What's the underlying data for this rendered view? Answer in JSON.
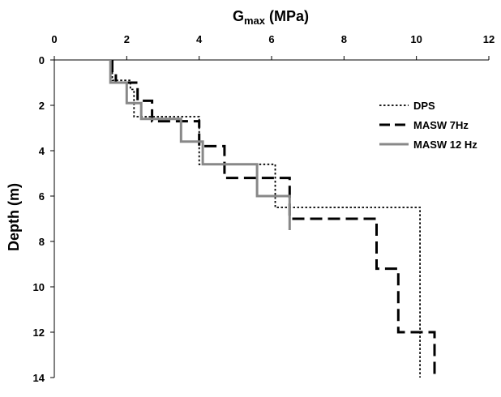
{
  "chart_data": {
    "type": "line",
    "title_main": "G",
    "title_sub": "max",
    "title_unit": " (MPa)",
    "xlabel": "",
    "ylabel": "Depth (m)",
    "x_axis_position": "top",
    "y_inverted": true,
    "xlim": [
      0,
      12
    ],
    "ylim": [
      0,
      15
    ],
    "xticks": [
      "0",
      "2",
      "4",
      "6",
      "8",
      "10",
      "12"
    ],
    "yticks": [
      "0",
      "2",
      "4",
      "6",
      "8",
      "10",
      "12",
      "14"
    ],
    "grid": false,
    "legend_position": "top-right",
    "series": [
      {
        "name": "DPS",
        "color": "#000000",
        "style": "dotted",
        "points": [
          [
            1.6,
            0
          ],
          [
            1.6,
            0.9
          ],
          [
            2.1,
            0.9
          ],
          [
            2.1,
            1.3
          ],
          [
            2.2,
            1.3
          ],
          [
            2.2,
            2.5
          ],
          [
            4.0,
            2.5
          ],
          [
            4.0,
            4.6
          ],
          [
            6.1,
            4.6
          ],
          [
            6.1,
            6.5
          ],
          [
            10.1,
            6.5
          ],
          [
            10.1,
            15
          ]
        ]
      },
      {
        "name": "MASW 7Hz",
        "color": "#000000",
        "style": "dashed",
        "points": [
          [
            1.6,
            0
          ],
          [
            1.6,
            0.6
          ],
          [
            1.7,
            0.6
          ],
          [
            1.7,
            1.0
          ],
          [
            2.3,
            1.0
          ],
          [
            2.3,
            1.8
          ],
          [
            2.7,
            1.8
          ],
          [
            2.7,
            2.7
          ],
          [
            4.0,
            2.7
          ],
          [
            4.0,
            3.8
          ],
          [
            4.7,
            3.8
          ],
          [
            4.7,
            5.2
          ],
          [
            6.5,
            5.2
          ],
          [
            6.5,
            7.0
          ],
          [
            8.9,
            7.0
          ],
          [
            8.9,
            9.2
          ],
          [
            9.5,
            9.2
          ],
          [
            9.5,
            12.0
          ],
          [
            10.5,
            12.0
          ],
          [
            10.5,
            15
          ]
        ]
      },
      {
        "name": "MASW 12 Hz",
        "color": "#888888",
        "style": "solid",
        "points": [
          [
            1.55,
            0
          ],
          [
            1.55,
            1.0
          ],
          [
            2.0,
            1.0
          ],
          [
            2.0,
            1.9
          ],
          [
            2.4,
            1.9
          ],
          [
            2.4,
            2.6
          ],
          [
            3.5,
            2.6
          ],
          [
            3.5,
            3.6
          ],
          [
            4.1,
            3.6
          ],
          [
            4.1,
            4.6
          ],
          [
            5.6,
            4.6
          ],
          [
            5.6,
            6.0
          ],
          [
            6.5,
            6.0
          ],
          [
            6.5,
            7.5
          ]
        ]
      }
    ]
  }
}
